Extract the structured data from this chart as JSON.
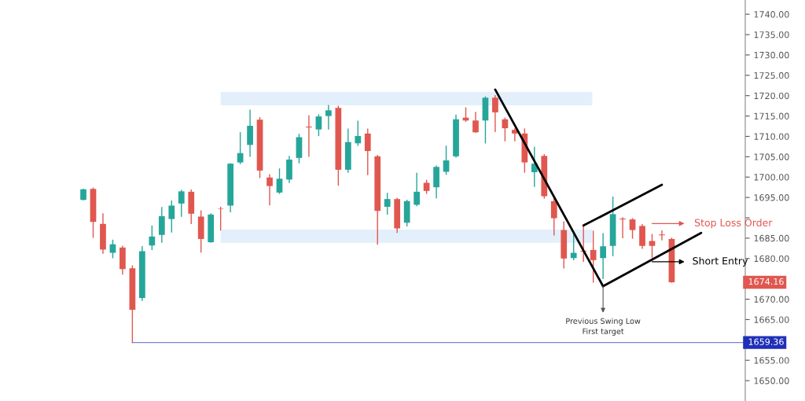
{
  "chart_data": {
    "type": "candlestick",
    "categories": [
      null,
      null,
      null,
      null,
      null,
      null,
      null,
      null,
      null,
      null,
      null,
      null,
      null,
      null,
      null,
      null,
      null,
      null,
      null,
      null,
      null,
      null,
      null,
      null,
      null,
      null,
      null,
      null,
      null,
      null,
      null,
      null,
      null,
      null,
      null,
      null,
      null,
      null,
      null,
      null,
      null,
      null,
      null,
      null,
      null,
      null,
      null,
      null,
      null,
      null,
      null,
      null,
      null,
      null,
      null,
      null,
      null,
      null,
      null,
      null,
      null,
      null,
      null,
      null,
      null,
      null,
      null,
      null,
      null,
      null,
      null,
      null,
      null,
      null,
      null,
      null
    ],
    "ohlc": [
      null,
      null,
      null,
      null,
      null,
      null,
      null,
      null,
      [
        1694.4,
        1697.0,
        1694.4,
        1697.0
      ],
      [
        1697.1,
        1697.3,
        1685.2,
        1689.0
      ],
      [
        1688.5,
        1691.0,
        1681.3,
        1682.2
      ],
      [
        1681.4,
        1684.5,
        1680.2,
        1683.5
      ],
      [
        1682.7,
        1683.0,
        1676.2,
        1677.4
      ],
      [
        1677.6,
        1678.2,
        1659.36,
        1667.4
      ],
      [
        1670.3,
        1682.9,
        1669.7,
        1681.8
      ],
      [
        1683.2,
        1688.0,
        1682.2,
        1685.4
      ],
      [
        1685.8,
        1692.5,
        1684.0,
        1690.4
      ],
      [
        1689.7,
        1694.1,
        1686.5,
        1693.0
      ],
      [
        1693.5,
        1696.7,
        1690.4,
        1696.5
      ],
      [
        1696.4,
        1696.8,
        1688.6,
        1691.0
      ],
      [
        1690.3,
        1691.7,
        1681.6,
        1684.8
      ],
      [
        1684.0,
        1691.0,
        1684.0,
        1690.8
      ],
      [
        1692.3,
        1692.6,
        1687.0,
        1692.2
      ],
      [
        1693.0,
        1703.3,
        1691.5,
        1703.3
      ],
      [
        1703.6,
        1710.9,
        1703.3,
        1705.9
      ],
      [
        1707.9,
        1716.4,
        1705.1,
        1712.6
      ],
      [
        1714.1,
        1714.6,
        1699.9,
        1701.6
      ],
      [
        1699.9,
        1700.6,
        1693.2,
        1697.8
      ],
      [
        1696.2,
        1702.0,
        1696.0,
        1699.6
      ],
      [
        1699.4,
        1705.1,
        1698.7,
        1704.3
      ],
      [
        1704.7,
        1710.5,
        1703.5,
        1709.8
      ],
      [
        1712.4,
        1715.0,
        1705.1,
        1712.2
      ],
      [
        1711.7,
        1715.3,
        1710.2,
        1714.9
      ],
      [
        1715.0,
        1717.6,
        1711.8,
        1716.4
      ],
      [
        1717.0,
        1717.4,
        1698.0,
        1701.8
      ],
      [
        1701.8,
        1711.8,
        1701.2,
        1708.6
      ],
      [
        1708.3,
        1713.7,
        1707.8,
        1710.1
      ],
      [
        1710.7,
        1711.8,
        1700.6,
        1706.4
      ],
      [
        1705.1,
        1705.3,
        1683.5,
        1691.7
      ],
      [
        1692.7,
        1696.0,
        1690.9,
        1694.6
      ],
      [
        1694.6,
        1694.8,
        1686.4,
        1687.4
      ],
      [
        1688.8,
        1694.3,
        1688.0,
        1694.1
      ],
      [
        1693.2,
        1700.9,
        1693.0,
        1696.4
      ],
      [
        1698.6,
        1699.2,
        1696.0,
        1696.6
      ],
      [
        1697.5,
        1702.7,
        1694.9,
        1702.5
      ],
      [
        1701.3,
        1707.6,
        1700.7,
        1704.1
      ],
      [
        1705.1,
        1715.2,
        1704.9,
        1714.2
      ],
      [
        1714.6,
        1717.0,
        1713.7,
        1713.9
      ],
      [
        1713.9,
        1715.9,
        1711.0,
        1711.0
      ],
      [
        1713.9,
        1719.7,
        1708.4,
        1719.5
      ],
      [
        1719.5,
        1720.0,
        1711.2,
        1715.9
      ],
      [
        1714.2,
        1714.5,
        1708.9,
        1712.0
      ],
      [
        1711.6,
        1711.9,
        1708.9,
        1710.7
      ],
      [
        1710.7,
        1711.8,
        1701.2,
        1703.6
      ],
      [
        1701.2,
        1707.3,
        1697.7,
        1703.3
      ],
      [
        1705.2,
        1705.5,
        1694.8,
        1695.3
      ],
      [
        1694.1,
        1694.7,
        1685.8,
        1689.9
      ],
      [
        1687.0,
        1689.0,
        1677.7,
        1680.0
      ],
      [
        1680.1,
        1685.8,
        1679.7,
        1681.4
      ],
      [
        1681.9,
        1688.0,
        1679.3,
        1681.7
      ],
      [
        1682.1,
        1686.7,
        1674.2,
        1679.6
      ],
      [
        1680.1,
        1686.1,
        1675.1,
        1683.0
      ],
      [
        1683.1,
        1695.1,
        1680.7,
        1690.9
      ],
      [
        1689.8,
        1690.0,
        1685.1,
        1689.6
      ],
      [
        1689.6,
        1689.8,
        1685.0,
        1687.0
      ],
      [
        1688.0,
        1688.3,
        1682.5,
        1683.1
      ],
      [
        1684.3,
        1685.9,
        1680.3,
        1683.1
      ],
      [
        1685.9,
        1686.8,
        1684.6,
        1685.7
      ],
      [
        1684.8,
        1685.0,
        1674.16,
        1674.16
      ],
      null,
      null,
      null,
      null,
      null,
      null,
      null
    ],
    "colors": [
      null,
      null,
      null,
      null,
      null,
      null,
      null,
      null,
      "#26a69a",
      "#e0574f",
      "#e0574f",
      "#26a69a",
      "#e0574f",
      "#e0574f",
      "#26a69a",
      "#26a69a",
      "#26a69a",
      "#26a69a",
      "#26a69a",
      "#e0574f",
      "#e0574f",
      "#26a69a",
      "#e0574f",
      "#26a69a",
      "#26a69a",
      "#26a69a",
      "#e0574f",
      "#e0574f",
      "#26a69a",
      "#26a69a",
      "#26a69a",
      "#e0574f",
      "#26a69a",
      "#26a69a",
      "#e0574f",
      "#26a69a",
      "#26a69a",
      "#e0574f",
      "#e0574f",
      "#26a69a",
      "#e0574f",
      "#26a69a",
      "#26a69a",
      "#e0574f",
      "#26a69a",
      "#26a69a",
      "#26a69a",
      "#e0574f",
      "#e0574f",
      "#26a69a",
      "#e0574f",
      "#e0574f",
      "#e0574f",
      "#e0574f",
      "#26a69a",
      "#e0574f",
      "#e0574f",
      "#e0574f",
      "#26a69a",
      "#e0574f",
      "#e0574f",
      "#26a69a",
      "#26a69a",
      "#e0574f",
      "#e0574f",
      "#e0574f",
      "#e0574f",
      "#e0574f",
      "#e0574f",
      null,
      null,
      null,
      null,
      null,
      null,
      null
    ],
    "series": [
      {
        "type": "line",
        "color": "#000000",
        "values": [
          null,
          null,
          null,
          null,
          null,
          null,
          null,
          null,
          null,
          null,
          null,
          null,
          null,
          null,
          null,
          null,
          null,
          null,
          null,
          null,
          null,
          null,
          null,
          null,
          null,
          null,
          null,
          null,
          null,
          null,
          null,
          null,
          null,
          null,
          null,
          null,
          null,
          null,
          null,
          null,
          null,
          null,
          null,
          null,
          null,
          null,
          null,
          null,
          null,
          null,
          1721.5,
          null,
          null,
          null,
          null,
          null,
          null,
          null,
          null,
          null,
          null,
          1673.2,
          null,
          null,
          null,
          null,
          null,
          null,
          null,
          null,
          null,
          null,
          null,
          null,
          null,
          null
        ]
      },
      {
        "type": "line",
        "color": "#000000",
        "values": [
          null,
          null,
          null,
          null,
          null,
          null,
          null,
          null,
          null,
          null,
          null,
          null,
          null,
          null,
          null,
          null,
          null,
          null,
          null,
          null,
          null,
          null,
          null,
          null,
          null,
          null,
          null,
          null,
          null,
          null,
          null,
          null,
          null,
          null,
          null,
          null,
          null,
          null,
          null,
          null,
          null,
          null,
          null,
          null,
          null,
          null,
          null,
          null,
          null,
          null,
          null,
          null,
          null,
          null,
          null,
          null,
          null,
          null,
          null,
          1688.1,
          null,
          null,
          null,
          null,
          null,
          null,
          null,
          1698.1,
          null,
          null,
          null,
          null,
          null,
          null,
          null,
          null
        ]
      },
      {
        "type": "line",
        "color": "#000000",
        "values": [
          null,
          null,
          null,
          null,
          null,
          null,
          null,
          null,
          null,
          null,
          null,
          null,
          null,
          null,
          null,
          null,
          null,
          null,
          null,
          null,
          null,
          null,
          null,
          null,
          null,
          null,
          null,
          null,
          null,
          null,
          null,
          null,
          null,
          null,
          null,
          null,
          null,
          null,
          null,
          null,
          null,
          null,
          null,
          null,
          null,
          null,
          null,
          null,
          null,
          null,
          null,
          null,
          null,
          null,
          null,
          null,
          null,
          null,
          null,
          null,
          null,
          1673.2,
          null,
          null,
          null,
          null,
          null,
          null,
          null,
          null,
          null,
          1686.3,
          null,
          null,
          null,
          null
        ]
      }
    ],
    "ylim": [
      1645,
      1743.5
    ],
    "yticks": [
      {
        "value": 1650,
        "label": "1650.00"
      },
      {
        "value": 1655,
        "label": "1655.00"
      },
      {
        "value": 1665,
        "label": "1665.00"
      },
      {
        "value": 1670,
        "label": "1670.00"
      },
      {
        "value": 1680,
        "label": "1680.00"
      },
      {
        "value": 1685,
        "label": "1685.00"
      },
      {
        "value": 1690,
        "label": null
      },
      {
        "value": 1695,
        "label": "1695.00"
      },
      {
        "value": 1700,
        "label": "1700.00"
      },
      {
        "value": 1705,
        "label": "1705.00"
      },
      {
        "value": 1710,
        "label": "1710.00"
      },
      {
        "value": 1715,
        "label": "1715.00"
      },
      {
        "value": 1720,
        "label": "1720.00"
      },
      {
        "value": 1725,
        "label": "1725.00"
      },
      {
        "value": 1730,
        "label": "1730.00"
      },
      {
        "value": 1735,
        "label": "1735.00"
      },
      {
        "value": 1740,
        "label": "1740.00"
      }
    ],
    "ref_lines": [
      {
        "axis": "y",
        "value": 1659.36,
        "label": "1659.36",
        "color": "#1f2fb8"
      }
    ],
    "bands": [
      {
        "axis": "y",
        "from": 1717.6,
        "to": 1720.9,
        "color": "#e3f0fb"
      },
      {
        "axis": "y",
        "from": 1683.8,
        "to": 1687.1,
        "color": "#e3f0fb"
      }
    ],
    "annotations": [
      "Stop Loss Order",
      "Short Entry",
      "Previous Swing Low\nFirst target",
      "1674.16"
    ],
    "tick_labels": "y",
    "grid": false,
    "legend": false
  }
}
